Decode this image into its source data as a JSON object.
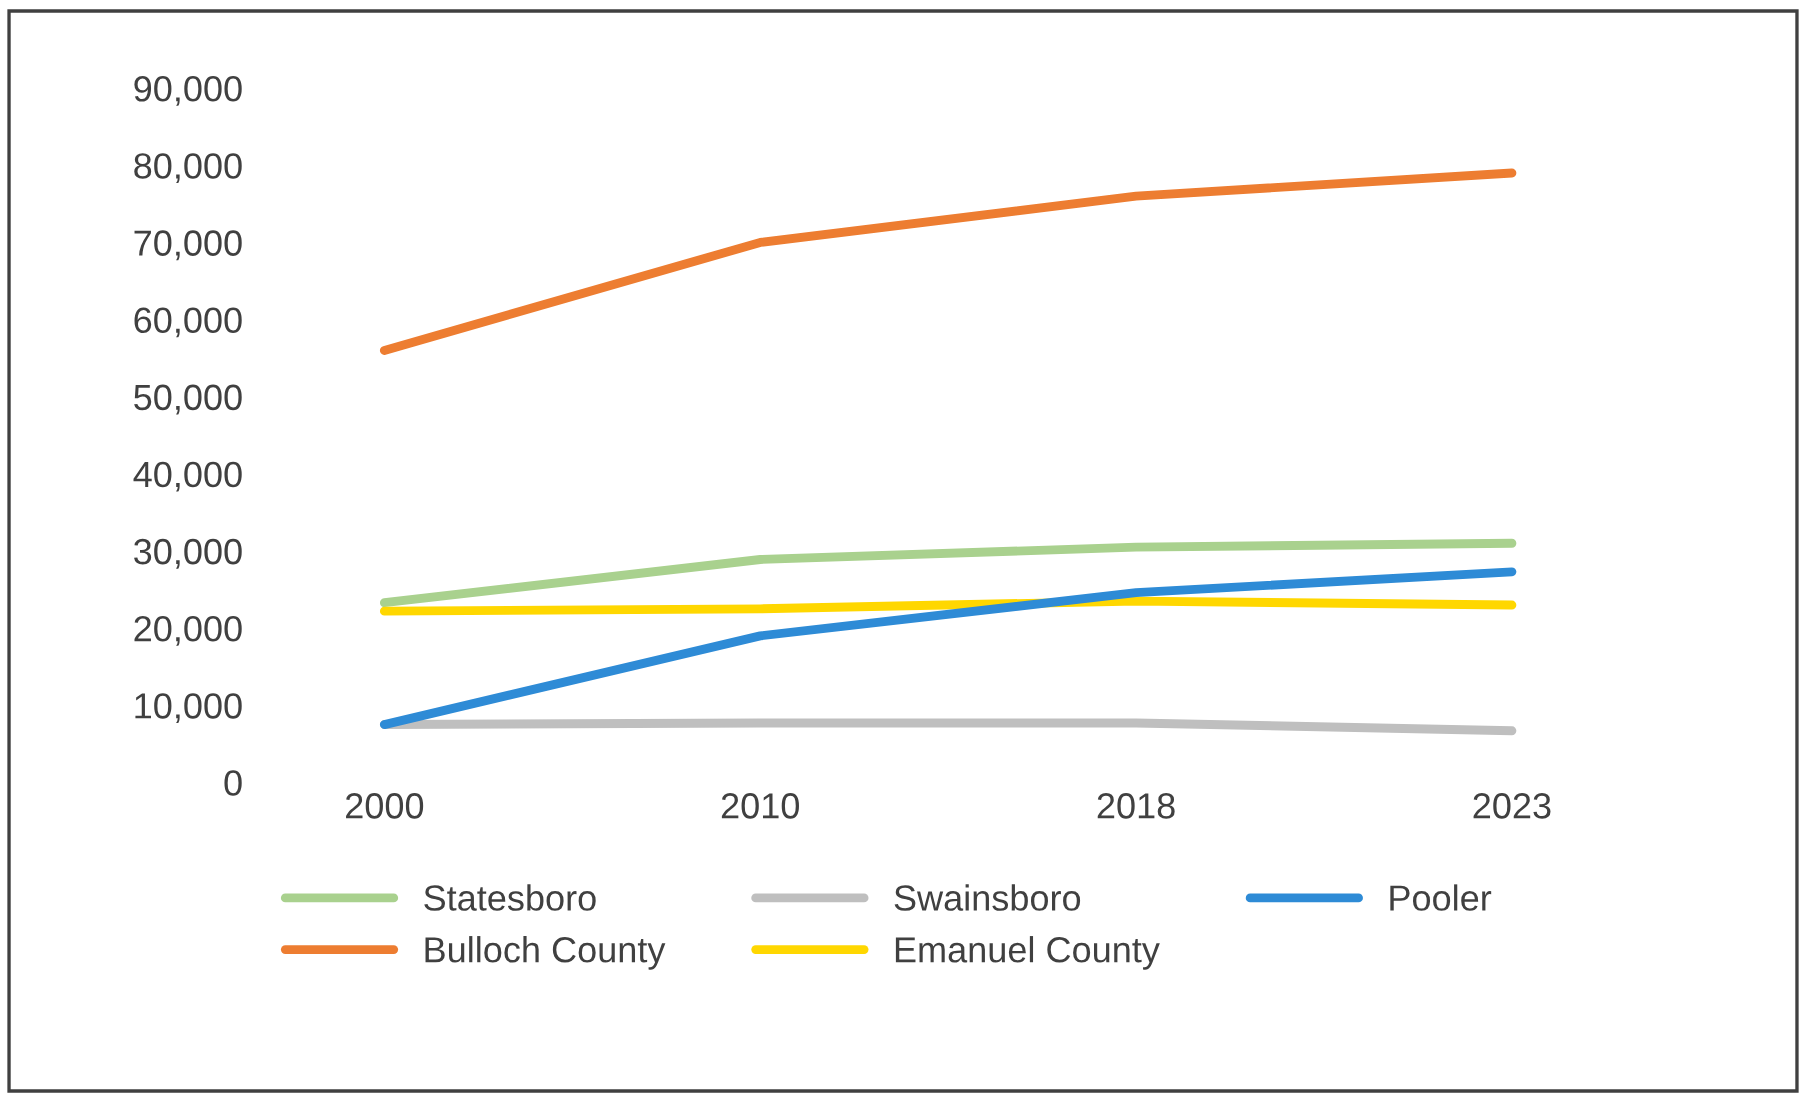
{
  "chart_data": {
    "type": "line",
    "categories": [
      "2000",
      "2010",
      "2018",
      "2023"
    ],
    "series": [
      {
        "name": "Statesboro",
        "color": "#a9d18e",
        "values": [
          23300,
          28900,
          30500,
          31000
        ]
      },
      {
        "name": "Bulloch County",
        "color": "#ed7d31",
        "values": [
          56000,
          70000,
          76000,
          79000
        ]
      },
      {
        "name": "Swainsboro",
        "color": "#bfbfbf",
        "values": [
          7500,
          7700,
          7700,
          6700
        ]
      },
      {
        "name": "Emanuel County",
        "color": "#ffd700",
        "values": [
          22200,
          22500,
          23500,
          23000
        ]
      },
      {
        "name": "Pooler",
        "color": "#2e8bd6",
        "values": [
          7500,
          19000,
          24600,
          27300
        ]
      }
    ],
    "ylim": [
      0,
      90000
    ],
    "yticks": [
      {
        "value": 0,
        "label": "0"
      },
      {
        "value": 10000,
        "label": "10,000"
      },
      {
        "value": 20000,
        "label": "20,000"
      },
      {
        "value": 30000,
        "label": "30,000"
      },
      {
        "value": 40000,
        "label": "40,000"
      },
      {
        "value": 50000,
        "label": "50,000"
      },
      {
        "value": 60000,
        "label": "60,000"
      },
      {
        "value": 70000,
        "label": "70,000"
      },
      {
        "value": 80000,
        "label": "80,000"
      },
      {
        "value": 90000,
        "label": "90,000"
      }
    ],
    "grid": false,
    "legend": "bottom",
    "marker": "none",
    "line_style": "solid"
  }
}
